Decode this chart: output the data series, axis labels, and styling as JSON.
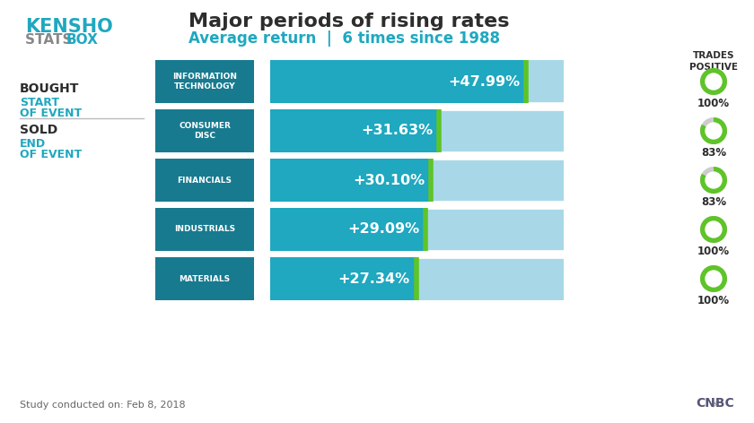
{
  "title_main": "Major periods of rising rates",
  "title_sub": "Average return  |  6 times since 1988",
  "kensho_text": "KENSHO",
  "stats_box_text": "STATS BOX",
  "bought_label": "BOUGHT",
  "start_label": "START\nOF EVENT",
  "sold_label": "SOLD",
  "end_label": "END\nOF EVENT",
  "trades_positive_label": "TRADES\nPOSITIVE",
  "categories": [
    "INFORMATION\nTECHNOLOGY",
    "CONSUMER\nDISC",
    "FINANCIALS",
    "INDUSTRIALS",
    "MATERIALS"
  ],
  "values": [
    47.99,
    31.63,
    30.1,
    29.09,
    27.34
  ],
  "value_labels": [
    "+47.99%",
    "+31.63%",
    "+30.10%",
    "+29.09%",
    "+27.34%"
  ],
  "trades_positive": [
    100,
    83,
    83,
    100,
    100
  ],
  "bar_color_dark": "#1fa8c0",
  "bar_color_light": "#a8d8e8",
  "bar_color_label": "#187a8f",
  "green_accent": "#5ec427",
  "title_color": "#2d2d2d",
  "subtitle_color": "#1fa8c0",
  "kensho_color": "#1fa8c0",
  "stats_color": "#888888",
  "bought_color": "#2d2d2d",
  "bought_sub_color": "#1fa8c0",
  "footer_text": "Study conducted on: Feb 8, 2018",
  "max_value": 55,
  "bg_color": "#ffffff"
}
